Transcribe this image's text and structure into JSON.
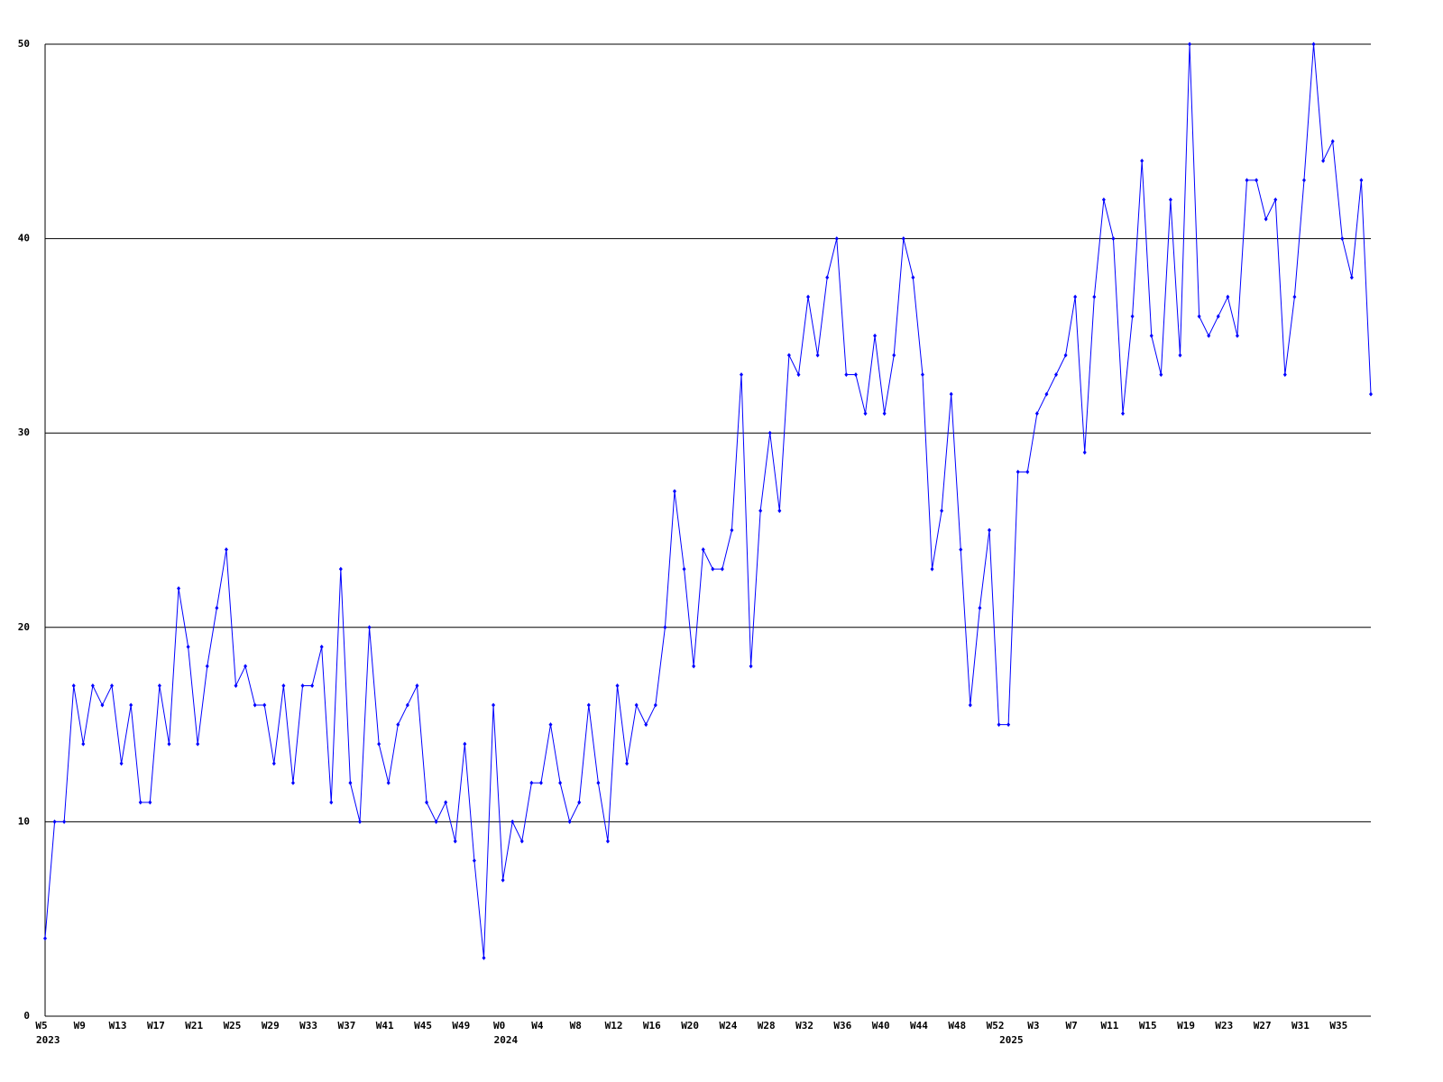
{
  "chart_data": {
    "type": "line",
    "categories": [
      "W5",
      null,
      null,
      null,
      "W9",
      null,
      null,
      null,
      "W13",
      null,
      null,
      null,
      "W17",
      null,
      null,
      null,
      "W21",
      null,
      null,
      null,
      "W25",
      null,
      null,
      null,
      "W29",
      null,
      null,
      null,
      "W33",
      null,
      null,
      null,
      "W37",
      null,
      null,
      null,
      "W41",
      null,
      null,
      null,
      "W45",
      null,
      null,
      null,
      "W49",
      null,
      null,
      null,
      "W0",
      null,
      null,
      null,
      "W4",
      null,
      null,
      null,
      "W8",
      null,
      null,
      null,
      "W12",
      null,
      null,
      null,
      "W16",
      null,
      null,
      null,
      "W20",
      null,
      null,
      null,
      "W24",
      null,
      null,
      null,
      "W28",
      null,
      null,
      null,
      "W32",
      null,
      null,
      null,
      "W36",
      null,
      null,
      null,
      "W40",
      null,
      null,
      null,
      "W44",
      null,
      null,
      null,
      "W48",
      null,
      null,
      null,
      "W52",
      null,
      null,
      null,
      "W3",
      null,
      null,
      null,
      "W7",
      null,
      null,
      null,
      "W11",
      null,
      null,
      null,
      "W15",
      null,
      null,
      null,
      "W19",
      null,
      null,
      null,
      "W23",
      null,
      null,
      null,
      "W27",
      null,
      null,
      null,
      "W31",
      null,
      null,
      null,
      "W35",
      null,
      null,
      null
    ],
    "year_labels": [
      {
        "at": 0,
        "label": "2023"
      },
      {
        "at": 48,
        "label": "2024"
      },
      {
        "at": 101,
        "label": "2025"
      }
    ],
    "series": [
      {
        "color": "#0000ff",
        "values": [
          4,
          10,
          10,
          17,
          14,
          17,
          16,
          17,
          13,
          16,
          11,
          11,
          17,
          14,
          22,
          19,
          14,
          18,
          21,
          24,
          17,
          18,
          16,
          16,
          13,
          17,
          12,
          17,
          17,
          19,
          11,
          23,
          12,
          10,
          20,
          14,
          12,
          15,
          16,
          17,
          11,
          10,
          11,
          9,
          14,
          8,
          3,
          16,
          7,
          10,
          9,
          12,
          12,
          15,
          12,
          10,
          11,
          16,
          12,
          9,
          17,
          13,
          16,
          15,
          16,
          20,
          27,
          23,
          18,
          24,
          23,
          23,
          25,
          33,
          18,
          26,
          30,
          26,
          34,
          33,
          37,
          34,
          38,
          40,
          33,
          33,
          31,
          35,
          31,
          34,
          40,
          38,
          33,
          23,
          26,
          32,
          24,
          16,
          21,
          25,
          15,
          15,
          28,
          28,
          31,
          32,
          33,
          34,
          37,
          29,
          37,
          42,
          40,
          31,
          36,
          44,
          35,
          33,
          42,
          34,
          50,
          36,
          35,
          36,
          37,
          35,
          43,
          43,
          41,
          42,
          33,
          37,
          43,
          50,
          44,
          45,
          40,
          38,
          43,
          32
        ]
      }
    ],
    "ylim": [
      0,
      50
    ],
    "yticks": [
      0,
      10,
      20,
      30,
      40,
      50
    ],
    "grid": true
  }
}
